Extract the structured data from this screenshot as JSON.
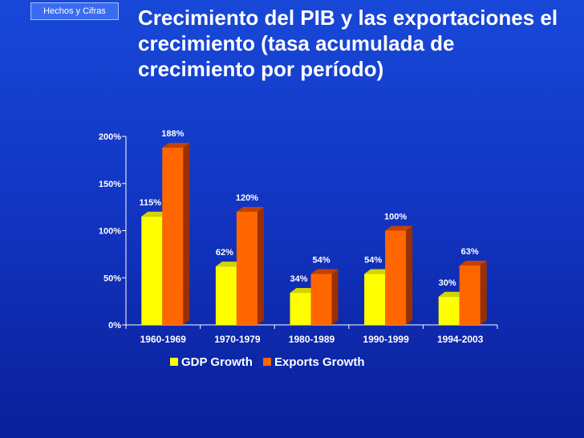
{
  "badge": "Hechos y Cifras",
  "title": "Crecimiento del PIB y las exportaciones el crecimiento (tasa acumulada de crecimiento por período)",
  "colors": {
    "gdp_front": "#ffff00",
    "gdp_top": "#d4d400",
    "gdp_side": "#9c9c00",
    "exp_front": "#ff6600",
    "exp_top": "#c84000",
    "exp_side": "#9a3000",
    "text": "#ffffff",
    "axis": "#ffffff"
  },
  "chart_data": {
    "type": "bar",
    "title": "Crecimiento del PIB y las exportaciones el crecimiento (tasa acumulada de crecimiento por período)",
    "categories": [
      "1960-1969",
      "1970-1979",
      "1980-1989",
      "1990-1999",
      "1994-2003"
    ],
    "series": [
      {
        "name": "GDP Growth",
        "values": [
          115,
          62,
          34,
          54,
          30
        ],
        "labels": [
          "115%",
          "62%",
          "34%",
          "54%",
          "30%"
        ]
      },
      {
        "name": "Exports Growth",
        "values": [
          188,
          120,
          54,
          100,
          63
        ],
        "labels": [
          "188%",
          "120%",
          "54%",
          "100%",
          "63%"
        ]
      }
    ],
    "ylim": [
      0,
      200
    ],
    "yticks": [
      0,
      50,
      100,
      150,
      200
    ],
    "ytick_labels": [
      "0%",
      "50%",
      "100%",
      "150%",
      "200%"
    ],
    "xlabel": "",
    "ylabel": "",
    "legend": "bottom",
    "grid": false
  }
}
